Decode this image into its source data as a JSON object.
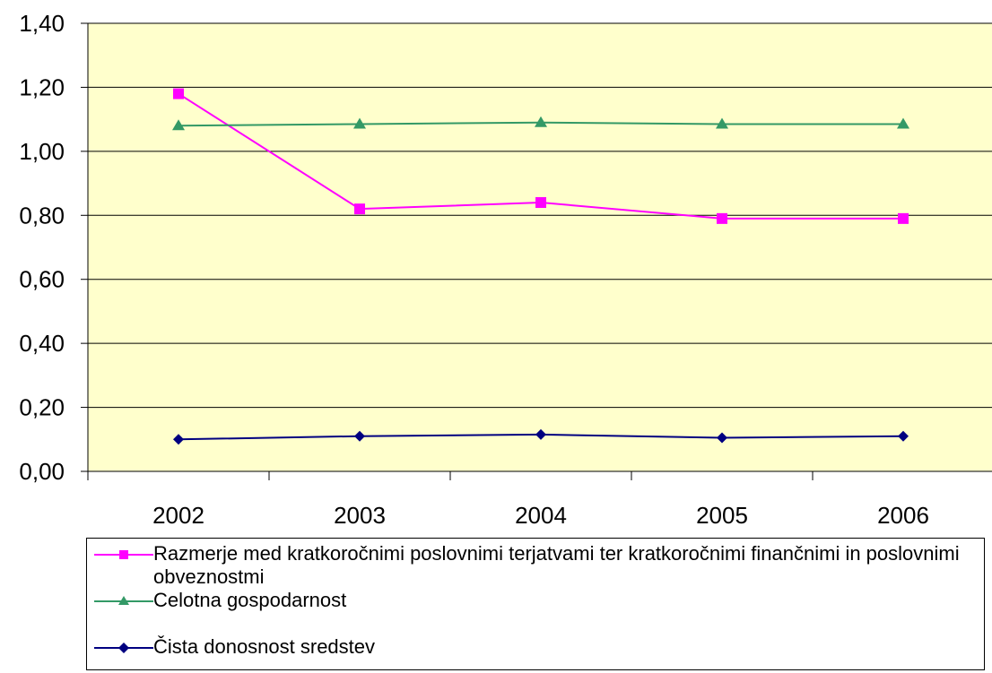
{
  "chart_data": {
    "type": "line",
    "categories": [
      "2002",
      "2003",
      "2004",
      "2005",
      "2006"
    ],
    "ylim": [
      0,
      1.4
    ],
    "yticks": [
      "0,00",
      "0,20",
      "0,40",
      "0,60",
      "0,80",
      "1,00",
      "1,20",
      "1,40"
    ],
    "ytick_values": [
      0,
      0.2,
      0.4,
      0.6,
      0.8,
      1.0,
      1.2,
      1.4
    ],
    "grid": true,
    "plot_background": "#ffffcc",
    "legend_position": "bottom",
    "series": [
      {
        "name": "Razmerje med kratkoročnimi poslovnimi terjatvami ter kratkoročnimi finančnimi in poslovnimi obveznostmi",
        "values": [
          1.18,
          0.82,
          0.84,
          0.79,
          0.79
        ],
        "color": "#ff00ff",
        "marker": "square"
      },
      {
        "name": "Celotna gospodarnost",
        "values": [
          1.08,
          1.085,
          1.09,
          1.085,
          1.085
        ],
        "color": "#339966",
        "marker": "triangle"
      },
      {
        "name": "Čista donosnost sredstev",
        "values": [
          0.1,
          0.11,
          0.115,
          0.105,
          0.11
        ],
        "color": "#000080",
        "marker": "diamond"
      }
    ]
  }
}
